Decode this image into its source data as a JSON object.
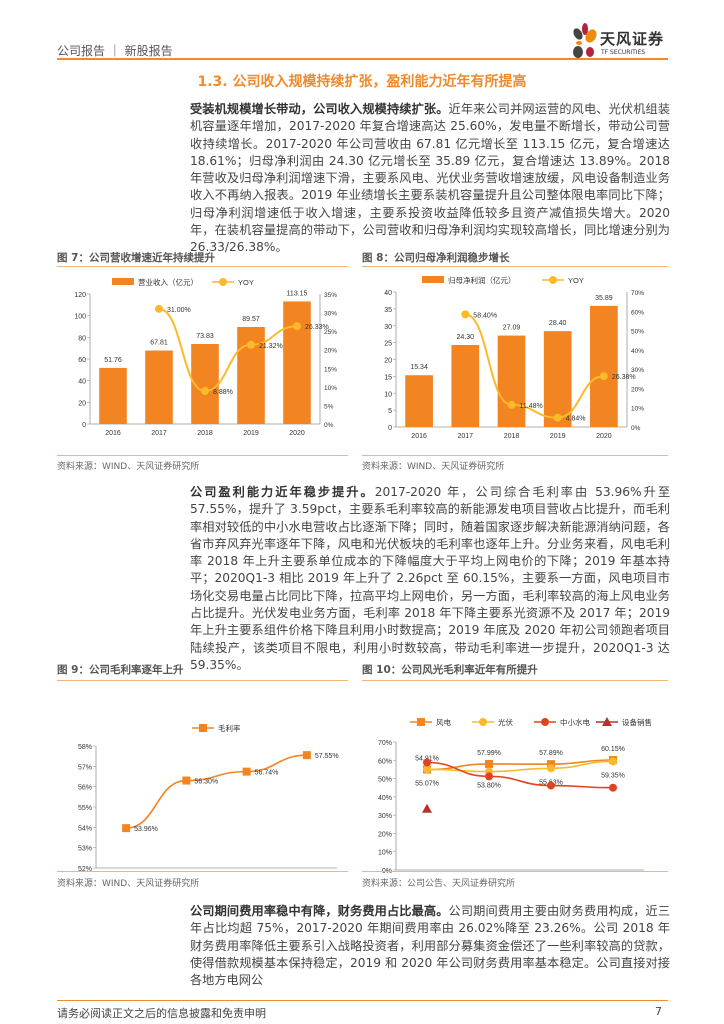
{
  "header": {
    "breadcrumb": "公司报告 ｜ 新股报告",
    "logo_name": "天风证券",
    "logo_sub": "TF SECURITIES"
  },
  "section_title": "1.3. 公司收入规模持续扩张，盈利能力近年有所提高",
  "paragraphs": [
    {
      "lead": "受装机规模增长带动，公司收入规模持续扩张。",
      "body": "近年来公司并网运营的风电、光伏机组装机容量逐年增加，2017-2020 年复合增速高达 25.60%，发电量不断增长，带动公司营收持续增长。2017-2020 年公司营收由 67.81 亿元增长至 113.15 亿元，复合增速达 18.61%；归母净利润由 24.30 亿元增长至 35.89 亿元，复合增速达 13.89%。2018 年营收及归母净利润增速下滑，主要系风电、光伏业务营收增速放缓，风电设备制造业务收入不再纳入报表。2019 年业绩增长主要系装机容量提升且公司整体限电率同比下降；归母净利润增速低于收入增速，主要系投资收益降低较多且资产减值损失增大。2020 年，在装机容量提高的带动下，公司营收和归母净利润均实现较高增长，同比增速分别为 26.33/26.38%。"
    },
    {
      "lead": "公司盈利能力近年稳步提升。",
      "body": "2017-2020 年，公司综合毛利率由 53.96%升至 57.55%，提升了 3.59pct，主要系毛利率较高的新能源发电项目营收占比提升，而毛利率相对较低的中小水电营收占比逐渐下降；同时，随着国家逐步解决新能源消纳问题，各省市弃风弃光率逐年下降，风电和光伏板块的毛利率也逐年上升。分业务来看，风电毛利率 2018 年上升主要系单位成本的下降幅度大于平均上网电价的下降；2019 年基本持平；2020Q1-3 相比 2019 年上升了 2.26pct 至 60.15%，主要系一方面，风电项目市场化交易电量占比同比下降，拉高平均上网电价，另一方面，毛利率较高的海上风电业务占比提升。光伏发电业务方面，毛利率 2018 年下降主要系光资源不及 2017 年；2019 年上升主要系组件价格下降且利用小时数提高；2019 年底及 2020 年初公司领跑者项目陆续投产，该类项目不限电，利用小时数较高，带动毛利率进一步提升，2020Q1-3 达 59.35%。"
    },
    {
      "lead": "公司期间费用率稳中有降，财务费用占比最高。",
      "body": "公司期间费用主要由财务费用构成，近三年占比均超 75%，2017-2020 年期间费用率由 26.02%降至 23.26%。公司 2018 年财务费用率降低主要系引入战略投资者，利用部分募集资金偿还了一些利率较高的贷款，使得借款规模基本保持稳定，2019 和 2020 年公司财务费用率基本稳定。公司直接对接各地方电网公"
    }
  ],
  "figures": [
    {
      "title": "图 7：公司营收增速近年持续提升",
      "source": "资料来源：WIND、天风证券研究所"
    },
    {
      "title": "图 8：公司归母净利润稳步增长",
      "source": "资料来源：WIND、天风证券研究所"
    },
    {
      "title": "图 9：公司毛利率逐年上升",
      "source": "资料来源：WIND、天风证券研究所"
    },
    {
      "title": "图 10：公司风光毛利率近年有所提升",
      "source": "资料来源：公司公告、天风证券研究所"
    }
  ],
  "chart_data": [
    {
      "type": "bar+line",
      "categories": [
        "2016",
        "2017",
        "2018",
        "2019",
        "2020"
      ],
      "series": [
        {
          "name": "营业收入（亿元）",
          "kind": "bar",
          "axis": "left",
          "values": [
            51.76,
            67.81,
            73.83,
            89.57,
            113.15
          ],
          "labels": [
            "51.76",
            "67.81",
            "73.83",
            "89.57",
            "113.15"
          ],
          "color": "#F28422"
        },
        {
          "name": "YOY",
          "kind": "line",
          "axis": "right",
          "values": [
            null,
            31.0,
            8.88,
            21.32,
            26.33
          ],
          "labels": [
            "",
            "31.00%",
            "8.88%",
            "21.32%",
            "26.33%"
          ],
          "color": "#FBBA2A"
        }
      ],
      "ylim": [
        0,
        120
      ],
      "yticks": [
        "0",
        "20",
        "40",
        "60",
        "80",
        "100",
        "120"
      ],
      "y2lim": [
        0,
        35
      ],
      "y2ticks": [
        "0%",
        "5%",
        "10%",
        "15%",
        "20%",
        "25%",
        "30%",
        "35%"
      ]
    },
    {
      "type": "bar+line",
      "categories": [
        "2016",
        "2017",
        "2018",
        "2019",
        "2020"
      ],
      "series": [
        {
          "name": "归母净利润（亿元）",
          "kind": "bar",
          "axis": "left",
          "values": [
            15.34,
            24.3,
            27.09,
            28.4,
            35.89
          ],
          "labels": [
            "15.34",
            "24.30",
            "27.09",
            "28.40",
            "35.89"
          ],
          "color": "#F28422"
        },
        {
          "name": "YOY",
          "kind": "line",
          "axis": "right",
          "values": [
            null,
            58.4,
            11.48,
            4.84,
            26.38
          ],
          "labels": [
            "",
            "58.40%",
            "11.48%",
            "4.84%",
            "26.38%"
          ],
          "color": "#FBBA2A"
        }
      ],
      "ylim": [
        0,
        40
      ],
      "yticks": [
        "0",
        "5",
        "10",
        "15",
        "20",
        "25",
        "30",
        "35",
        "40"
      ],
      "y2lim": [
        0,
        70
      ],
      "y2ticks": [
        "0%",
        "10%",
        "20%",
        "30%",
        "40%",
        "50%",
        "60%",
        "70%"
      ]
    },
    {
      "type": "line",
      "categories": [
        "2017",
        "2018",
        "2019",
        "2020"
      ],
      "series": [
        {
          "name": "毛利率",
          "values": [
            53.96,
            56.3,
            56.74,
            57.55
          ],
          "labels": [
            "53.96%",
            "56.30%",
            "56.74%",
            "57.55%"
          ],
          "label_pos": "right",
          "marker": "square",
          "color": "#F28422"
        }
      ],
      "ylim": [
        52,
        58
      ],
      "yticks": [
        "52%",
        "53%",
        "54%",
        "55%",
        "56%",
        "57%",
        "58%"
      ]
    },
    {
      "type": "line",
      "categories": [
        "2017",
        "2018",
        "2019",
        "2020Q1-3"
      ],
      "series": [
        {
          "name": "风电",
          "values": [
            54.91,
            57.99,
            57.89,
            60.15
          ],
          "labels": [
            "54.91%",
            "57.99%",
            "57.89%",
            "60.15%"
          ],
          "label_pos": "above",
          "marker": "square",
          "color": "#F28422"
        },
        {
          "name": "光伏",
          "values": [
            55.07,
            53.8,
            55.63,
            59.35
          ],
          "labels": [
            "55.07%",
            "53.80%",
            "55.63%",
            "59.35%"
          ],
          "label_pos": "below",
          "marker": "circle",
          "color": "#FBBA2A"
        },
        {
          "name": "中小水电",
          "values": [
            58.8,
            51.2,
            46.2,
            45.0
          ],
          "labels": [
            "",
            "",
            "",
            ""
          ],
          "marker": "circle",
          "color": "#E0441E"
        },
        {
          "name": "设备销售",
          "values": [
            33.5,
            null,
            null,
            null
          ],
          "labels": [
            "",
            "",
            "",
            ""
          ],
          "marker": "triangle",
          "color": "#B5332A"
        }
      ],
      "ylim": [
        0,
        70
      ],
      "yticks": [
        "0%",
        "10%",
        "20%",
        "30%",
        "40%",
        "50%",
        "60%",
        "70%"
      ]
    }
  ],
  "footer": {
    "disclaimer": "请务必阅读正文之后的信息披露和免责申明",
    "page": "7"
  }
}
